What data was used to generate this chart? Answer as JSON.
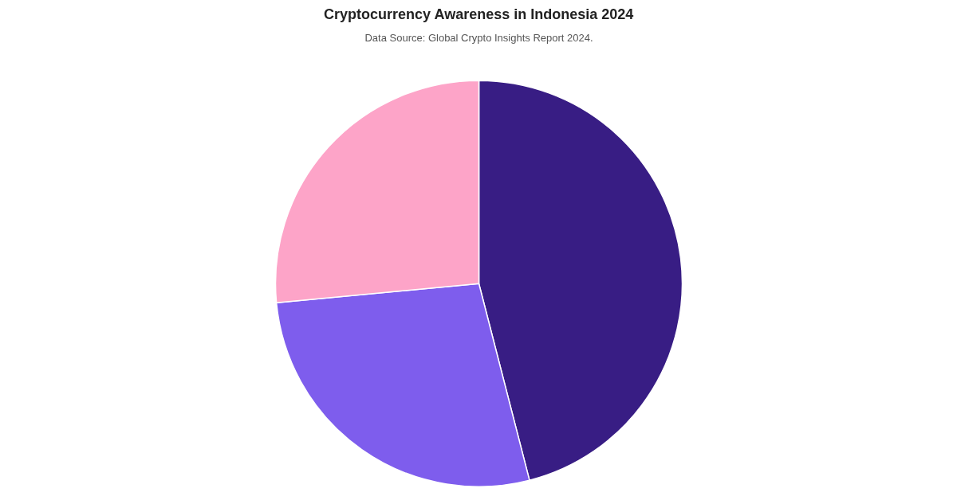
{
  "chart_data": {
    "type": "pie",
    "title": "Cryptocurrency Awareness in Indonesia 2024",
    "subtitle": "Data Source: Global Crypto Insights Report 2024.",
    "categories": [
      null,
      null,
      null
    ],
    "values": [
      46,
      27.5,
      26.5
    ],
    "colors": [
      "#381d84",
      "#7e5ded",
      "#fda4c8"
    ]
  }
}
